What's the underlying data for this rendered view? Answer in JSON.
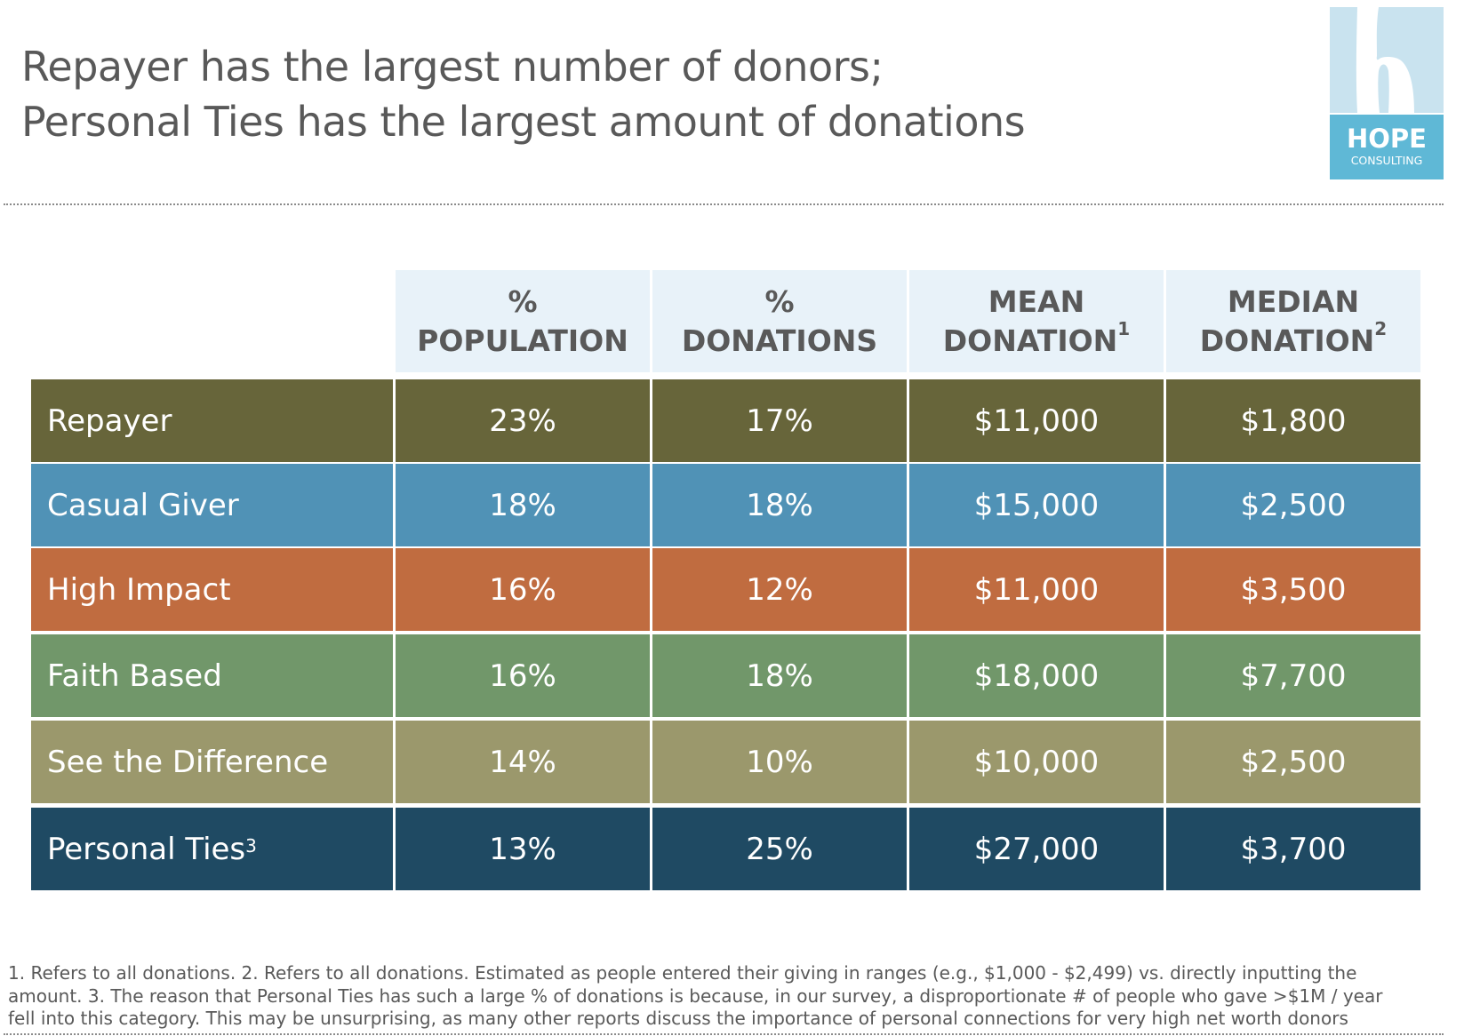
{
  "header": {
    "title_lines": [
      "Repayer has the largest number of donors;",
      "Personal Ties has the largest amount of donations"
    ]
  },
  "logo": {
    "brand": "HOPE",
    "sub": "CONSULTING",
    "colors": {
      "upper": "#C9E3EF",
      "lower": "#5FB8D6"
    }
  },
  "table": {
    "columns": [
      {
        "line1": "%",
        "line2": "POPULATION",
        "sup": ""
      },
      {
        "line1": "%",
        "line2": "DONATIONS",
        "sup": ""
      },
      {
        "line1": "MEAN",
        "line2": "DONATION",
        "sup": "1"
      },
      {
        "line1": "MEDIAN",
        "line2": "DONATION",
        "sup": "2"
      }
    ],
    "rows": [
      {
        "label": "Repayer",
        "sup": "",
        "color": "#67653A",
        "values": [
          "23%",
          "17%",
          "$11,000",
          "$1,800"
        ]
      },
      {
        "label": "Casual Giver",
        "sup": "",
        "color": "#5092B6",
        "values": [
          "18%",
          "18%",
          "$15,000",
          "$2,500"
        ]
      },
      {
        "label": "High Impact",
        "sup": "",
        "color": "#C06C40",
        "values": [
          "16%",
          "12%",
          "$11,000",
          "$3,500"
        ]
      },
      {
        "label": "Faith Based",
        "sup": "",
        "color": "#71976A",
        "values": [
          "16%",
          "18%",
          "$18,000",
          "$7,700"
        ]
      },
      {
        "label": "See the Difference",
        "sup": "",
        "color": "#9B986C",
        "values": [
          "14%",
          "10%",
          "$10,000",
          "$2,500"
        ]
      },
      {
        "label": "Personal Ties",
        "sup": "3",
        "color": "#1F4A63",
        "values": [
          "13%",
          "25%",
          "$27,000",
          "$3,700"
        ]
      }
    ],
    "header_bg": "#E8F2F9"
  },
  "footnote": {
    "lines": [
      "1. Refers to all donations. 2. Refers to all donations. Estimated as people entered their giving in ranges (e.g., $1,000 - $2,499) vs. directly inputting the",
      "amount. 3. The reason that Personal Ties has such a large % of donations is because, in our survey, a disproportionate # of people who gave >$1M / year",
      "fell into this category. This may be unsurprising, as many other reports discuss the importance of personal connections for very high net worth donors"
    ]
  }
}
